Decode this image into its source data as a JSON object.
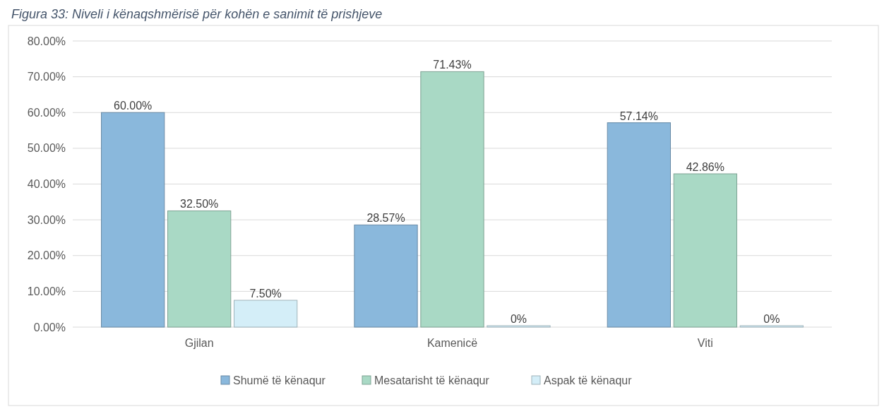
{
  "chart_data": {
    "type": "bar",
    "title": "Figura 33: Niveli i kënaqshmërisë për kohën e sanimit të prishjeve",
    "categories": [
      "Gjilan",
      "Kamenicë",
      "Viti"
    ],
    "series": [
      {
        "name": "Shumë të kënaqur",
        "color": "#8ab8dc",
        "values": [
          60,
          28.57,
          57.14
        ],
        "value_labels": [
          "60.00%",
          "28.57%",
          "57.14%"
        ]
      },
      {
        "name": "Mesatarisht të kënaqur",
        "color": "#a9d9c5",
        "values": [
          32.5,
          71.43,
          42.86
        ],
        "value_labels": [
          "32.50%",
          "71.43%",
          "42.86%"
        ]
      },
      {
        "name": "Aspak të kënaqur",
        "color": "#d4eef8",
        "values": [
          7.5,
          0,
          0
        ],
        "value_labels": [
          "7.50%",
          "0%",
          "0%"
        ]
      }
    ],
    "ylim": [
      0,
      80
    ],
    "yticks": [
      {
        "value": 0,
        "label": "0.00%"
      },
      {
        "value": 10,
        "label": "10.00%"
      },
      {
        "value": 20,
        "label": "20.00%"
      },
      {
        "value": 30,
        "label": "30.00%"
      },
      {
        "value": 40,
        "label": "40.00%"
      },
      {
        "value": 50,
        "label": "50.00%"
      },
      {
        "value": 60,
        "label": "60.00%"
      },
      {
        "value": 70,
        "label": "70.00%"
      },
      {
        "value": 80,
        "label": "80.00%"
      }
    ],
    "grid": "y",
    "legend": "bottom"
  }
}
